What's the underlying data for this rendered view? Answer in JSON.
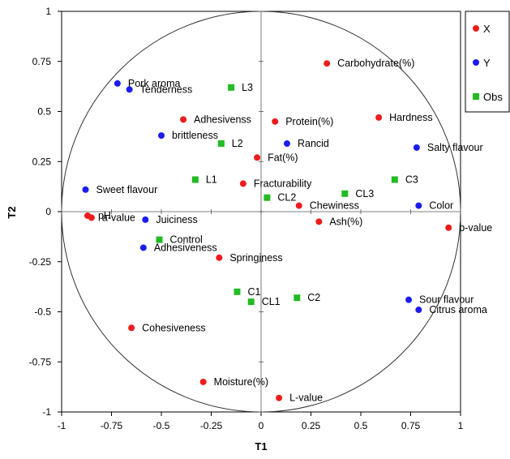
{
  "chart_data": {
    "type": "scatter",
    "xlabel": "T1",
    "ylabel": "T2",
    "xlim": [
      -1,
      1
    ],
    "ylim": [
      -1,
      1
    ],
    "xticks": [
      "-1",
      "-0.75",
      "-0.5",
      "-0.25",
      "0",
      "0.25",
      "0.5",
      "0.75",
      "1"
    ],
    "yticks": [
      "1",
      "0.75",
      "0.5",
      "0.25",
      "0",
      "-0.25",
      "-0.5",
      "-0.75",
      "-1"
    ],
    "grid": false,
    "correlation_circle": true,
    "legend": {
      "placement": "top-right",
      "entries": [
        {
          "label": "X",
          "color": "#ee1c1c",
          "marker": "circle"
        },
        {
          "label": "Y",
          "color": "#1c1cee",
          "marker": "circle"
        },
        {
          "label": "Obs",
          "color": "#22bb22",
          "marker": "square"
        }
      ]
    },
    "series": [
      {
        "name": "X",
        "color": "#ee1c1c",
        "marker": "circle",
        "points": [
          {
            "label": "Carbohydrate(%)",
            "x": 0.33,
            "y": 0.74
          },
          {
            "label": "Hardness",
            "x": 0.59,
            "y": 0.47
          },
          {
            "label": "Adhesivenss",
            "x": -0.39,
            "y": 0.46
          },
          {
            "label": "Protein(%)",
            "x": 0.07,
            "y": 0.45
          },
          {
            "label": "Fat(%)",
            "x": -0.02,
            "y": 0.27
          },
          {
            "label": "Fracturability",
            "x": -0.09,
            "y": 0.14
          },
          {
            "label": "Chewiness",
            "x": 0.19,
            "y": 0.03
          },
          {
            "label": "Ash(%)",
            "x": 0.29,
            "y": -0.05
          },
          {
            "label": "b-value",
            "x": 0.94,
            "y": -0.08
          },
          {
            "label": "pH",
            "x": -0.87,
            "y": -0.02
          },
          {
            "label": "a-value",
            "x": -0.85,
            "y": -0.03
          },
          {
            "label": "Springiness",
            "x": -0.21,
            "y": -0.23
          },
          {
            "label": "Cohesiveness",
            "x": -0.65,
            "y": -0.58
          },
          {
            "label": "Moisture(%)",
            "x": -0.29,
            "y": -0.85
          },
          {
            "label": "L-value",
            "x": 0.09,
            "y": -0.93
          }
        ]
      },
      {
        "name": "Y",
        "color": "#1c1cee",
        "marker": "circle",
        "points": [
          {
            "label": "Pork aroma",
            "x": -0.72,
            "y": 0.64
          },
          {
            "label": "Tenderness",
            "x": -0.66,
            "y": 0.61
          },
          {
            "label": "brittleness",
            "x": -0.5,
            "y": 0.38
          },
          {
            "label": "Rancid",
            "x": 0.13,
            "y": 0.34
          },
          {
            "label": "Salty flavour",
            "x": 0.78,
            "y": 0.32
          },
          {
            "label": "Sweet flavour",
            "x": -0.88,
            "y": 0.11
          },
          {
            "label": "Color",
            "x": 0.79,
            "y": 0.03
          },
          {
            "label": "Juiciness",
            "x": -0.58,
            "y": -0.04
          },
          {
            "label": "Adhesiveness",
            "x": -0.59,
            "y": -0.18
          },
          {
            "label": "Sour flavour",
            "x": 0.74,
            "y": -0.44
          },
          {
            "label": "Citrus aroma",
            "x": 0.79,
            "y": -0.49
          }
        ]
      },
      {
        "name": "Obs",
        "color": "#22bb22",
        "marker": "square",
        "points": [
          {
            "label": "L3",
            "x": -0.15,
            "y": 0.62
          },
          {
            "label": "L2",
            "x": -0.2,
            "y": 0.34
          },
          {
            "label": "L1",
            "x": -0.33,
            "y": 0.16
          },
          {
            "label": "C3",
            "x": 0.67,
            "y": 0.16
          },
          {
            "label": "CL3",
            "x": 0.42,
            "y": 0.09
          },
          {
            "label": "CL2",
            "x": 0.03,
            "y": 0.07
          },
          {
            "label": "Control",
            "x": -0.51,
            "y": -0.14
          },
          {
            "label": "C1",
            "x": -0.12,
            "y": -0.4
          },
          {
            "label": "CL1",
            "x": -0.05,
            "y": -0.45
          },
          {
            "label": "C2",
            "x": 0.18,
            "y": -0.43
          }
        ]
      }
    ]
  }
}
